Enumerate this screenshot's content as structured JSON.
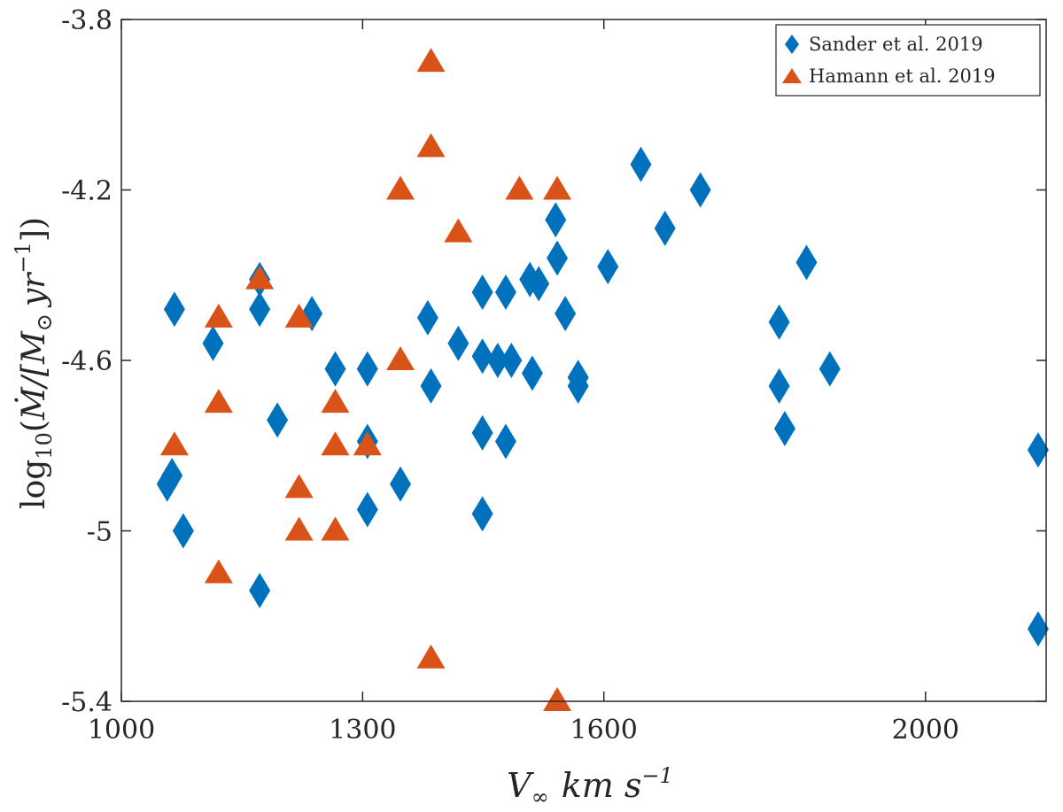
{
  "chart_data": {
    "type": "scatter",
    "title": "",
    "xlabel": "V∞ km s⁻¹",
    "ylabel": "log10(Ṁ/[M⊙ yr⁻¹])",
    "xlim": [
      1000,
      2150
    ],
    "ylim": [
      -5.4,
      -3.8
    ],
    "x_ticks": [
      1000,
      1300,
      1600,
      2000
    ],
    "y_ticks": [
      -3.8,
      -4.2,
      -4.6,
      -5,
      -5.4
    ],
    "x_tick_labels": [
      "1000",
      "1300",
      "1600",
      "2000"
    ],
    "y_tick_labels": [
      "-3.8",
      "-4.2",
      "-4.6",
      "-5",
      "-5.4"
    ],
    "xlabel_parts": {
      "base": "V",
      "sub": "∞",
      "unit": "km s",
      "sup": "−1"
    },
    "ylabel_parts": {
      "fn": "log",
      "fn_sub": "10",
      "open": "(",
      "mdot": "Ṁ",
      "slash": "/[M",
      "sun": "⊙",
      "yr": "yr",
      "sup": "−1",
      "close": "])"
    },
    "legend_position": "top-right",
    "series": [
      {
        "name": "Sander et al. 2019",
        "marker": "diamond",
        "color": "#0072BD",
        "points": [
          [
            1057,
            -4.89
          ],
          [
            1063,
            -4.87
          ],
          [
            1066,
            -4.48
          ],
          [
            1077,
            -5.0
          ],
          [
            1114,
            -4.56
          ],
          [
            1172,
            -4.41
          ],
          [
            1172,
            -4.48
          ],
          [
            1172,
            -5.14
          ],
          [
            1194,
            -4.74
          ],
          [
            1237,
            -4.49
          ],
          [
            1266,
            -4.62
          ],
          [
            1306,
            -4.62
          ],
          [
            1306,
            -4.79
          ],
          [
            1306,
            -4.95
          ],
          [
            1347,
            -4.89
          ],
          [
            1381,
            -4.5
          ],
          [
            1385,
            -4.66
          ],
          [
            1419,
            -4.56
          ],
          [
            1449,
            -4.44
          ],
          [
            1449,
            -4.59
          ],
          [
            1449,
            -4.77
          ],
          [
            1449,
            -4.96
          ],
          [
            1468,
            -4.6
          ],
          [
            1478,
            -4.44
          ],
          [
            1478,
            -4.79
          ],
          [
            1485,
            -4.6
          ],
          [
            1508,
            -4.41
          ],
          [
            1511,
            -4.63
          ],
          [
            1519,
            -4.42
          ],
          [
            1540,
            -4.27
          ],
          [
            1542,
            -4.36
          ],
          [
            1552,
            -4.49
          ],
          [
            1568,
            -4.64
          ],
          [
            1568,
            -4.66
          ],
          [
            1605,
            -4.38
          ],
          [
            1646,
            -4.14
          ],
          [
            1676,
            -4.29
          ],
          [
            1720,
            -4.2
          ],
          [
            1818,
            -4.51
          ],
          [
            1818,
            -4.66
          ],
          [
            1825,
            -4.76
          ],
          [
            1852,
            -4.37
          ],
          [
            1881,
            -4.62
          ],
          [
            2140,
            -4.81
          ],
          [
            2140,
            -5.23
          ]
        ]
      },
      {
        "name": "Hamann et al. 2019",
        "marker": "triangle",
        "color": "#D95319",
        "points": [
          [
            1066,
            -4.8
          ],
          [
            1121,
            -4.5
          ],
          [
            1121,
            -4.7
          ],
          [
            1121,
            -5.1
          ],
          [
            1172,
            -4.41
          ],
          [
            1221,
            -4.5
          ],
          [
            1221,
            -4.9
          ],
          [
            1221,
            -5.0
          ],
          [
            1266,
            -4.7
          ],
          [
            1266,
            -4.8
          ],
          [
            1266,
            -5.0
          ],
          [
            1306,
            -4.8
          ],
          [
            1347,
            -4.2
          ],
          [
            1347,
            -4.6
          ],
          [
            1385,
            -3.9
          ],
          [
            1385,
            -4.1
          ],
          [
            1385,
            -5.3
          ],
          [
            1419,
            -4.3
          ],
          [
            1495,
            -4.2
          ],
          [
            1542,
            -4.2
          ],
          [
            1542,
            -5.4
          ]
        ]
      }
    ]
  }
}
